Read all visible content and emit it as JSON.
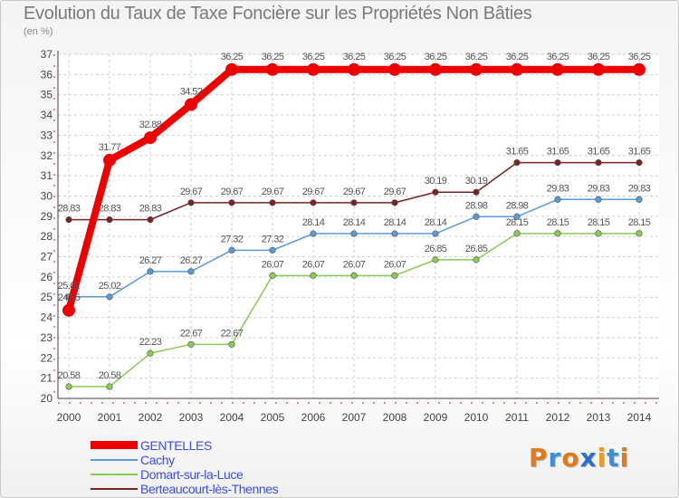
{
  "chart_data": {
    "type": "line",
    "title": "Evolution du Taux de Taxe Foncière sur les Propriétés Non Bâties",
    "ylabel": "(en %)",
    "xlabel": "",
    "ylim": [
      20,
      37
    ],
    "yticks": [
      20,
      21,
      22,
      23,
      24,
      25,
      26,
      27,
      28,
      29,
      30,
      31,
      32,
      33,
      34,
      35,
      36,
      37
    ],
    "categories": [
      "2000",
      "2001",
      "2002",
      "2003",
      "2004",
      "2005",
      "2006",
      "2007",
      "2008",
      "2009",
      "2010",
      "2011",
      "2012",
      "2013",
      "2014"
    ],
    "series": [
      {
        "name": "GENTELLES",
        "color": "#ee0000",
        "values": [
          24.35,
          31.77,
          32.88,
          34.52,
          36.25,
          36.25,
          36.25,
          36.25,
          36.25,
          36.25,
          36.25,
          36.25,
          36.25,
          36.25,
          36.25
        ],
        "labels": [
          "24.35",
          "31.77",
          "32.88",
          "34.52",
          "36.25",
          "36.25",
          "36.25",
          "36.25",
          "36.25",
          "36.25",
          "36.25",
          "36.25",
          "36.25",
          "36.25",
          "36.25"
        ]
      },
      {
        "name": "Cachy",
        "color": "#5b9bd5",
        "values": [
          25.02,
          25.02,
          26.27,
          26.27,
          27.32,
          27.32,
          28.14,
          28.14,
          28.14,
          28.14,
          28.98,
          28.98,
          29.83,
          29.83,
          29.83
        ],
        "labels": [
          "25.02",
          "25.02",
          "26.27",
          "26.27",
          "27.32",
          "27.32",
          "28.14",
          "28.14",
          "28.14",
          "28.14",
          "28.98",
          "28.98",
          "29.83",
          "29.83",
          "29.83"
        ]
      },
      {
        "name": "Domart-sur-la-Luce",
        "color": "#88cc55",
        "values": [
          20.58,
          20.58,
          22.23,
          22.67,
          22.67,
          26.07,
          26.07,
          26.07,
          26.07,
          26.85,
          26.85,
          28.15,
          28.15,
          28.15,
          28.15
        ],
        "labels": [
          "20.58",
          "20.58",
          "22.23",
          "22.67",
          "22.67",
          "26.07",
          "26.07",
          "26.07",
          "26.07",
          "26.85",
          "26.85",
          "28.15",
          "28.15",
          "28.15",
          "28.15"
        ]
      },
      {
        "name": "Berteaucourt-lès-Thennes",
        "color": "#7b2323",
        "values": [
          28.83,
          28.83,
          28.83,
          29.67,
          29.67,
          29.67,
          29.67,
          29.67,
          29.67,
          30.19,
          30.19,
          31.65,
          31.65,
          31.65,
          31.65
        ],
        "labels": [
          "28.83",
          "28.83",
          "28.83",
          "29.67",
          "29.67",
          "29.67",
          "29.67",
          "29.67",
          "29.67",
          "30.19",
          "30.19",
          "31.65",
          "31.65",
          "31.65",
          "31.65"
        ]
      }
    ]
  },
  "legend": {
    "items": [
      "GENTELLES",
      "Cachy",
      "Domart-sur-la-Luce",
      "Berteaucourt-lès-Thennes"
    ]
  },
  "logo": {
    "text": "Proxiti",
    "letters": [
      "P",
      "r",
      "o",
      "x",
      "i",
      "t",
      "i"
    ],
    "colors": [
      "#e07a1a",
      "#3a8fd8",
      "#e07a1a",
      "#2b6fc9",
      "#e89b1f",
      "#3a8fd8",
      "#e07a1a"
    ]
  }
}
